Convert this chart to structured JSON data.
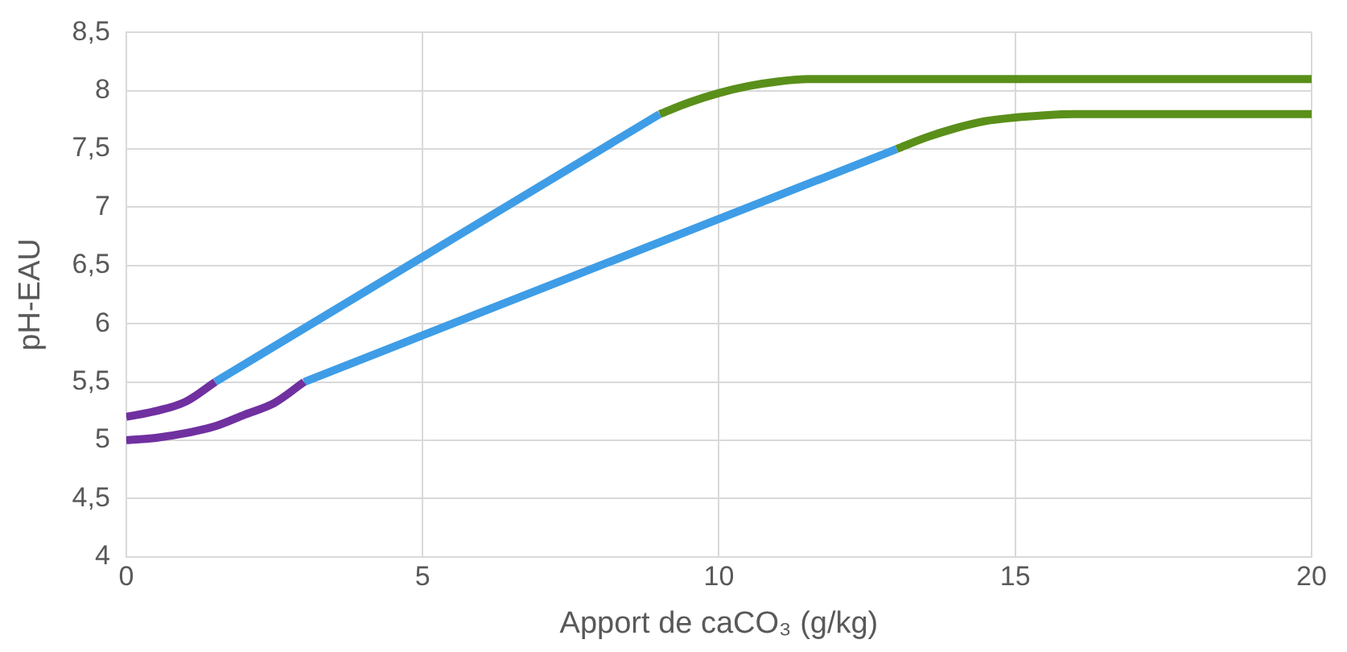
{
  "chart_data": {
    "type": "line",
    "xlabel": "Apport de caCO₃ (g/kg)",
    "ylabel": "pH-EAU",
    "xlim": [
      0,
      20
    ],
    "xticks": [
      0,
      5,
      10,
      15,
      20
    ],
    "ylim": [
      4,
      8.5
    ],
    "yticks": [
      4,
      {
        "value": 4.5,
        "label": "4,5"
      },
      5,
      {
        "value": 5.5,
        "label": "5,5"
      },
      6,
      {
        "value": 6.5,
        "label": "6,5"
      },
      7,
      {
        "value": 7.5,
        "label": "7,5"
      },
      8,
      {
        "value": 8.5,
        "label": "8,5"
      }
    ],
    "grid": true,
    "legend": false,
    "marker": "none",
    "line_style": "solid",
    "series": [
      {
        "color": "#7030a0",
        "x": [
          0,
          0.5,
          1,
          1.5
        ],
        "values": [
          5.2,
          5.25,
          5.33,
          5.5
        ]
      },
      {
        "color": "#3e9de6",
        "x": [
          1.5,
          9
        ],
        "values": [
          5.5,
          7.8
        ]
      },
      {
        "color": "#5a8f1a",
        "x": [
          9,
          9.5,
          10,
          10.5,
          11,
          11.5,
          12,
          20
        ],
        "values": [
          7.8,
          7.9,
          7.98,
          8.04,
          8.08,
          8.1,
          8.1,
          8.1
        ]
      },
      {
        "color": "#7030a0",
        "x": [
          0,
          0.5,
          1,
          1.5,
          2,
          2.5,
          3
        ],
        "values": [
          5,
          5.02,
          5.06,
          5.12,
          5.22,
          5.32,
          5.5
        ]
      },
      {
        "color": "#3e9de6",
        "x": [
          3,
          13
        ],
        "values": [
          5.5,
          7.5
        ]
      },
      {
        "color": "#5a8f1a",
        "x": [
          13,
          13.5,
          14,
          14.5,
          15,
          15.5,
          16,
          20
        ],
        "values": [
          7.5,
          7.6,
          7.68,
          7.74,
          7.77,
          7.79,
          7.8,
          7.8
        ]
      }
    ]
  }
}
